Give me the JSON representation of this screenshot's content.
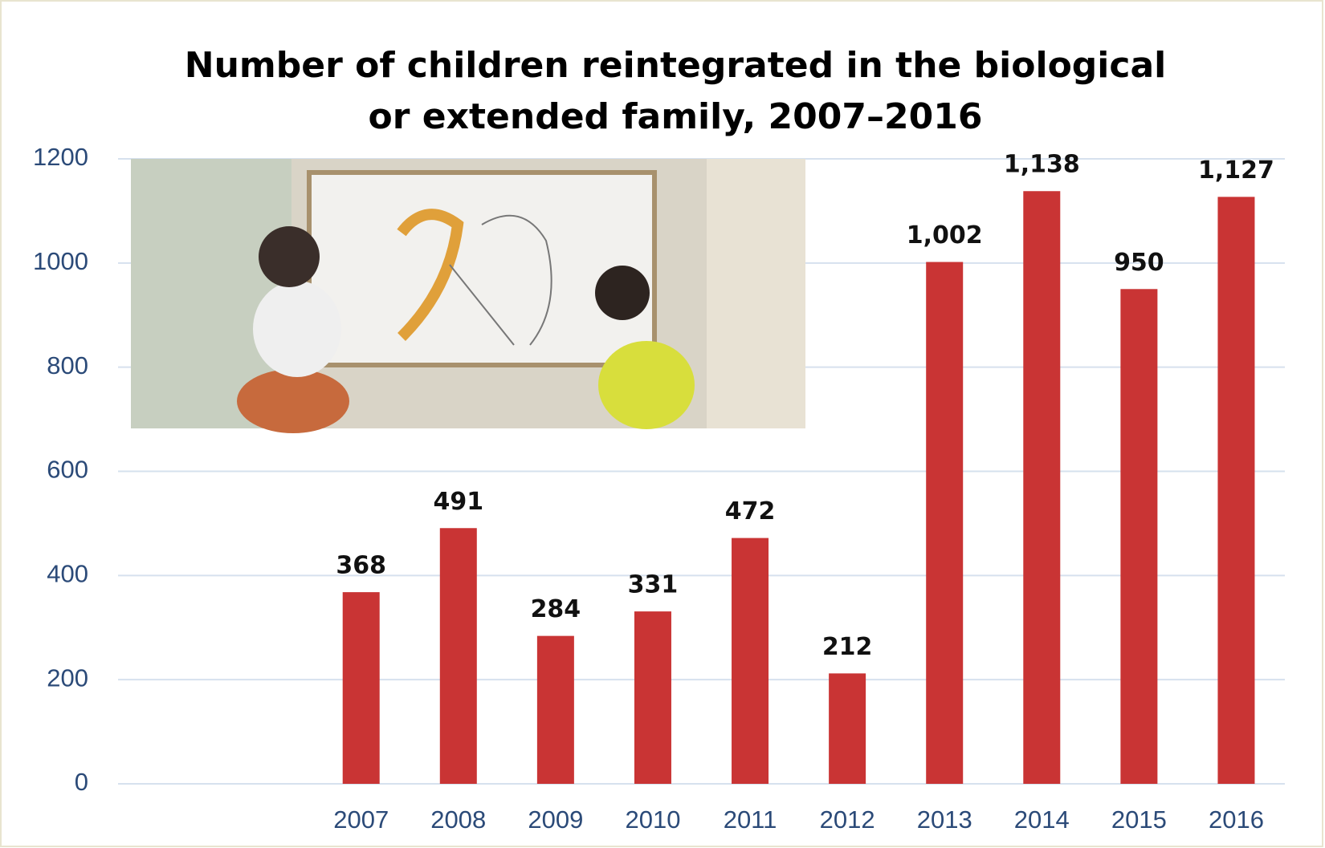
{
  "chart_data": {
    "type": "bar",
    "title": "Number of children reintegrated in the biological or extended family, 2007–2016",
    "categories": [
      null,
      null,
      "2007",
      "2008",
      "2009",
      "2010",
      "2011",
      "2012",
      "2013",
      "2014",
      "2015",
      "2016"
    ],
    "values": [
      null,
      null,
      368,
      491,
      284,
      331,
      472,
      212,
      1002,
      1138,
      950,
      1127
    ],
    "value_labels": [
      null,
      null,
      "368",
      "491",
      "284",
      "331",
      "472",
      "212",
      "1,002",
      "1,138",
      "950",
      "1,127"
    ],
    "color": "#c93434",
    "ylim": [
      0,
      1200
    ],
    "yticks": [
      0,
      200,
      400,
      600,
      800,
      1000,
      1200
    ],
    "grid": true
  }
}
